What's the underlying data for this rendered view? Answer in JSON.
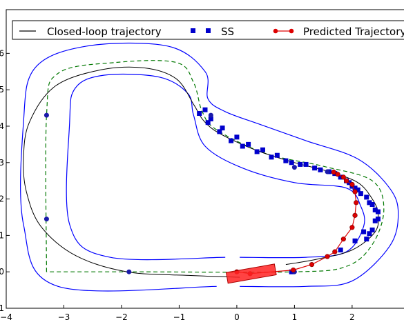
{
  "chart_data": {
    "type": "line",
    "title": "",
    "xlabel": "",
    "ylabel": "",
    "xlim": [
      -4,
      2.9
    ],
    "ylim": [
      -1,
      7.2
    ],
    "x_ticks": [
      -4,
      -3,
      -2,
      -1,
      0,
      1,
      2
    ],
    "y_ticks": [
      -1,
      0,
      1,
      2,
      3,
      4,
      5,
      6
    ],
    "x_tick_labels": [
      "−4",
      "−3",
      "−2",
      "−1",
      "0",
      "1",
      "2"
    ],
    "y_tick_labels": [
      "−1",
      "0",
      "1",
      "2",
      "3",
      "4",
      "5",
      "6"
    ],
    "grid": false,
    "legend_placement": "top",
    "legend": [
      {
        "label": "Closed-loop trajectory",
        "style": "line",
        "color": "#000000"
      },
      {
        "label": "SS",
        "style": "square",
        "color": "#0000cc"
      },
      {
        "label": "Predicted Trajectory",
        "style": "line-circle",
        "color": "#dd0000"
      }
    ],
    "track": {
      "outer_boundary": [
        [
          -0.35,
          -0.4
        ],
        [
          -3.1,
          -0.4
        ],
        [
          -3.7,
          1.3
        ],
        [
          -3.7,
          4.1
        ],
        [
          -3.5,
          5.6
        ],
        [
          -2.6,
          6.2
        ],
        [
          -1.2,
          6.2
        ],
        [
          -0.55,
          5.5
        ],
        [
          -0.5,
          4.75
        ],
        [
          -0.2,
          4.4
        ],
        [
          0.4,
          4.05
        ],
        [
          1.2,
          3.6
        ],
        [
          2.1,
          3.1
        ],
        [
          2.65,
          2.3
        ],
        [
          2.8,
          1.6
        ],
        [
          2.65,
          0.7
        ],
        [
          2.0,
          -0.25
        ],
        [
          1.2,
          -0.4
        ],
        [
          0.05,
          -0.4
        ]
      ],
      "inner_boundary": [
        [
          -0.2,
          0.4
        ],
        [
          -2.2,
          0.4
        ],
        [
          -2.9,
          1.3
        ],
        [
          -2.9,
          4.1
        ],
        [
          -2.8,
          5.05
        ],
        [
          -2.3,
          5.4
        ],
        [
          -1.35,
          5.35
        ],
        [
          -0.85,
          4.9
        ],
        [
          -0.75,
          4.3
        ],
        [
          -0.55,
          3.45
        ],
        [
          0.1,
          2.85
        ],
        [
          1.0,
          2.45
        ],
        [
          1.9,
          2.3
        ],
        [
          2.15,
          1.8
        ],
        [
          2.2,
          1.25
        ],
        [
          1.9,
          0.55
        ],
        [
          1.2,
          0.4
        ],
        [
          0.05,
          0.4
        ]
      ],
      "centerline": [
        [
          -3.3,
          0.0
        ],
        [
          -3.3,
          4.3
        ],
        [
          -3.1,
          5.45
        ],
        [
          -2.1,
          5.75
        ],
        [
          -1.05,
          5.75
        ],
        [
          -0.75,
          5.2
        ],
        [
          -0.6,
          4.4
        ],
        [
          -0.35,
          3.9
        ],
        [
          0.5,
          3.25
        ],
        [
          1.5,
          2.9
        ],
        [
          2.35,
          2.5
        ],
        [
          2.55,
          1.7
        ],
        [
          2.35,
          0.75
        ],
        [
          1.9,
          0.15
        ],
        [
          1.0,
          0.0
        ],
        [
          -1.8,
          0.0
        ],
        [
          -3.3,
          0.0
        ]
      ],
      "colors": {
        "boundary": "#0000ff",
        "centerline": "#007700"
      }
    },
    "series": [
      {
        "name": "Closed-loop trajectory",
        "color": "#000000",
        "x": [
          0.05,
          -0.8,
          -1.9,
          -2.8,
          -3.4,
          -3.65,
          -3.7,
          -3.6,
          -3.15,
          -2.35,
          -1.6,
          -1.05,
          -0.75,
          -0.6,
          -0.4,
          -0.05,
          0.4,
          1.0,
          1.6,
          2.1,
          2.35,
          2.45,
          2.4,
          2.0,
          1.4,
          0.85
        ],
        "y": [
          -0.15,
          -0.1,
          0.0,
          0.45,
          1.25,
          2.2,
          3.1,
          4.1,
          5.1,
          5.55,
          5.6,
          5.3,
          4.6,
          4.2,
          3.9,
          3.6,
          3.3,
          3.0,
          2.75,
          2.45,
          2.0,
          1.6,
          1.1,
          0.6,
          0.35,
          0.2
        ]
      },
      {
        "name": "SS",
        "color": "#0000cc",
        "marker": "square",
        "x": [
          -0.55,
          -0.65,
          -0.5,
          -0.45,
          -0.3,
          -0.25,
          -0.1,
          0.0,
          0.1,
          0.2,
          0.35,
          0.45,
          0.6,
          0.7,
          0.85,
          0.95,
          1.1,
          1.2,
          1.35,
          1.45,
          1.6,
          1.7,
          1.8,
          1.9,
          1.95,
          2.0,
          2.05,
          2.1,
          2.15,
          2.25,
          2.3,
          2.35,
          2.4,
          2.45,
          2.45,
          2.4,
          2.35,
          2.3,
          2.25,
          2.2,
          2.05,
          1.8,
          0.95
        ],
        "y": [
          4.45,
          4.35,
          4.1,
          4.2,
          3.85,
          3.95,
          3.6,
          3.7,
          3.45,
          3.5,
          3.3,
          3.35,
          3.15,
          3.2,
          3.05,
          3.0,
          2.95,
          2.95,
          2.85,
          2.8,
          2.75,
          2.7,
          2.6,
          2.5,
          2.45,
          2.35,
          2.3,
          2.25,
          2.15,
          2.05,
          1.9,
          1.85,
          1.7,
          1.65,
          1.45,
          1.4,
          1.15,
          1.05,
          0.9,
          1.1,
          0.85,
          0.6,
          0.0
        ]
      },
      {
        "name": "Predicted Trajectory",
        "color": "#dd0000",
        "marker": "circle",
        "x": [
          0.0,
          0.23,
          0.98,
          1.3,
          1.57,
          1.7,
          1.85,
          2.0,
          2.05,
          2.07,
          2.05,
          2.0,
          1.9,
          1.85,
          1.75,
          1.68
        ],
        "y": [
          0.0,
          -0.05,
          0.05,
          0.2,
          0.42,
          0.55,
          0.9,
          1.22,
          1.55,
          1.9,
          2.2,
          2.4,
          2.5,
          2.6,
          2.68,
          2.74
        ]
      }
    ],
    "extra_markers": {
      "color": "#1a1aaa",
      "x": [
        -3.3,
        -3.3,
        -1.87,
        1.0,
        1.0,
        1.57,
        -0.45
      ],
      "y": [
        4.3,
        1.45,
        0.0,
        0.0,
        2.87,
        2.75,
        4.3
      ]
    },
    "vehicle": {
      "x": 0.25,
      "y": -0.05,
      "length": 0.85,
      "width": 0.3,
      "heading_deg": 10,
      "color": "#ff2222"
    }
  }
}
